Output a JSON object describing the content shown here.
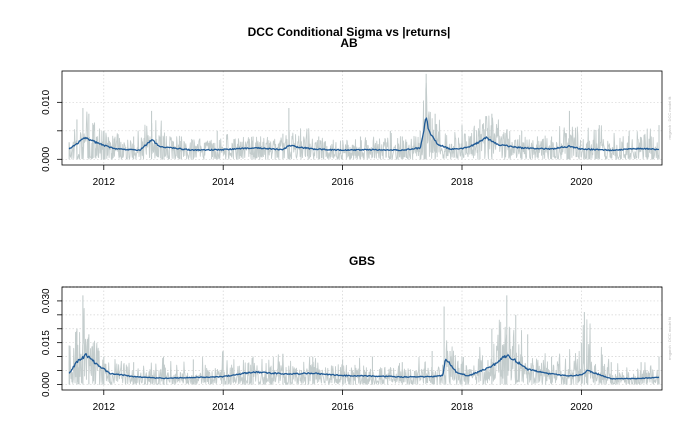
{
  "title": "DCC Conditional Sigma vs |returns|",
  "credit": "rmgarch : DCC model fit",
  "colors": {
    "abs_returns": "#c3cccc",
    "sigma": "#1f5a96",
    "grid": "#d3d3d3",
    "frame": "#000000"
  },
  "chart_data": [
    {
      "type": "line",
      "panel_title": "AB",
      "xlim": [
        2011.3,
        2021.35
      ],
      "ylim": [
        -0.001,
        0.0155
      ],
      "x_ticks": [
        2012,
        2014,
        2016,
        2018,
        2020
      ],
      "x_tick_labels": [
        "2012",
        "2014",
        "2016",
        "2018",
        "2020"
      ],
      "y_ticks": [
        0.0,
        0.005,
        0.01
      ],
      "y_tick_labels": [
        "0.000",
        "",
        "0.010"
      ],
      "grid": true,
      "series": [
        {
          "kind": "abs_returns",
          "x": [
            2011.42,
            2011.55,
            2011.65,
            2011.75,
            2012.0,
            2012.5,
            2012.8,
            2013.3,
            2013.9,
            2014.5,
            2015.0,
            2015.1,
            2015.6,
            2016.3,
            2016.8,
            2017.0,
            2017.3,
            2017.4,
            2017.55,
            2018.0,
            2018.3,
            2018.5,
            2019.0,
            2019.5,
            2019.8,
            2020.3,
            2020.8,
            2021.3
          ],
          "y": [
            0.003,
            0.007,
            0.009,
            0.008,
            0.005,
            0.004,
            0.0085,
            0.004,
            0.005,
            0.004,
            0.0045,
            0.009,
            0.004,
            0.004,
            0.005,
            0.004,
            0.005,
            0.015,
            0.008,
            0.006,
            0.007,
            0.008,
            0.005,
            0.004,
            0.0085,
            0.006,
            0.005,
            0.006
          ]
        },
        {
          "kind": "sigma",
          "x": [
            2011.42,
            2011.55,
            2011.7,
            2011.9,
            2012.2,
            2012.6,
            2012.8,
            2012.95,
            2013.5,
            2014.0,
            2014.5,
            2015.0,
            2015.1,
            2015.5,
            2016.0,
            2016.5,
            2017.0,
            2017.3,
            2017.4,
            2017.45,
            2017.6,
            2017.8,
            2018.0,
            2018.2,
            2018.4,
            2018.6,
            2019.0,
            2019.5,
            2019.8,
            2020.0,
            2020.5,
            2021.0,
            2021.3
          ],
          "y": [
            0.0018,
            0.0028,
            0.0038,
            0.0028,
            0.0018,
            0.0016,
            0.0034,
            0.0022,
            0.0016,
            0.0017,
            0.002,
            0.0017,
            0.0024,
            0.0018,
            0.0016,
            0.0017,
            0.0016,
            0.002,
            0.0072,
            0.0048,
            0.0026,
            0.0018,
            0.0019,
            0.0025,
            0.0038,
            0.0026,
            0.002,
            0.0018,
            0.0023,
            0.0018,
            0.0016,
            0.0019,
            0.0017
          ]
        }
      ]
    },
    {
      "type": "line",
      "panel_title": "GBS",
      "xlim": [
        2011.3,
        2021.35
      ],
      "ylim": [
        -0.002,
        0.035
      ],
      "x_ticks": [
        2012,
        2014,
        2016,
        2018,
        2020
      ],
      "x_tick_labels": [
        "2012",
        "2014",
        "2016",
        "2018",
        "2020"
      ],
      "y_ticks": [
        0.0,
        0.005,
        0.01,
        0.015,
        0.02,
        0.025,
        0.03
      ],
      "y_tick_labels": [
        "0.000",
        "",
        "",
        "0.015",
        "",
        "",
        "0.030"
      ],
      "grid": true,
      "series": [
        {
          "kind": "abs_returns",
          "x": [
            2011.42,
            2011.55,
            2011.65,
            2011.75,
            2012.0,
            2012.5,
            2013.0,
            2013.5,
            2014.0,
            2014.5,
            2015.0,
            2015.5,
            2016.0,
            2016.5,
            2017.0,
            2017.5,
            2017.7,
            2017.8,
            2018.0,
            2018.5,
            2018.75,
            2018.9,
            2019.1,
            2019.5,
            2020.0,
            2020.05,
            2020.5,
            2021.0,
            2021.3
          ],
          "y": [
            0.014,
            0.02,
            0.032,
            0.018,
            0.01,
            0.008,
            0.01,
            0.009,
            0.012,
            0.01,
            0.011,
            0.01,
            0.009,
            0.01,
            0.008,
            0.012,
            0.028,
            0.012,
            0.01,
            0.02,
            0.032,
            0.025,
            0.018,
            0.01,
            0.015,
            0.026,
            0.008,
            0.008,
            0.01
          ]
        },
        {
          "kind": "sigma",
          "x": [
            2011.42,
            2011.55,
            2011.7,
            2011.9,
            2012.1,
            2012.5,
            2013.0,
            2013.5,
            2014.0,
            2014.5,
            2015.0,
            2015.5,
            2016.0,
            2016.5,
            2017.0,
            2017.5,
            2017.68,
            2017.72,
            2017.9,
            2018.1,
            2018.5,
            2018.75,
            2018.9,
            2019.1,
            2019.4,
            2019.8,
            2020.0,
            2020.1,
            2020.5,
            2021.0,
            2021.3
          ],
          "y": [
            0.004,
            0.008,
            0.0105,
            0.007,
            0.004,
            0.0028,
            0.0022,
            0.0025,
            0.0028,
            0.0045,
            0.0038,
            0.004,
            0.0032,
            0.003,
            0.0027,
            0.0028,
            0.0032,
            0.0095,
            0.0045,
            0.003,
            0.0065,
            0.0105,
            0.0085,
            0.0055,
            0.004,
            0.003,
            0.0035,
            0.005,
            0.002,
            0.0022,
            0.0025
          ]
        }
      ]
    }
  ]
}
